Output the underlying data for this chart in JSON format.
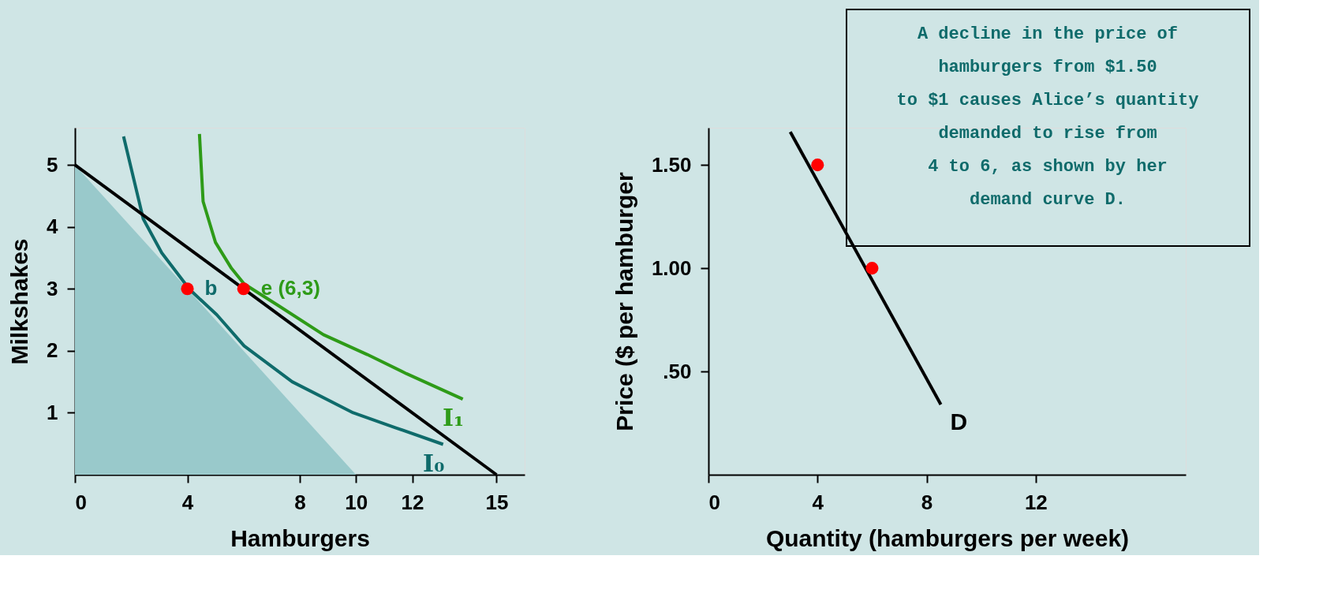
{
  "chart_data": [
    {
      "type": "line",
      "xlabel": "Hamburgers",
      "ylabel": "Milkshakes",
      "xlim": [
        0,
        16
      ],
      "ylim": [
        0,
        5.6
      ],
      "xticks": [
        0,
        4,
        8,
        10,
        12,
        15
      ],
      "yticks": [
        1,
        2,
        3,
        4,
        5
      ],
      "grid": false,
      "series": [
        {
          "type": "area",
          "color": "#99c9cb",
          "x": [
            0,
            10
          ],
          "values": [
            5,
            0
          ]
        },
        {
          "name": "I₀",
          "color": "#0f6b6b",
          "x": [
            1.73,
            2.43,
            3.09,
            4.08,
            5.05,
            6.02,
            7.73,
            9.9,
            11.4,
            13.1
          ],
          "values": [
            5.46,
            4.13,
            3.58,
            2.99,
            2.58,
            2.08,
            1.5,
            1.0,
            0.76,
            0.49
          ]
        },
        {
          "name": "I₁",
          "color": "#2e9b18",
          "x": [
            4.43,
            4.56,
            5.0,
            5.57,
            6.02,
            7.27,
            8.84,
            10.4,
            11.8,
            13.8
          ],
          "values": [
            5.5,
            4.41,
            3.75,
            3.33,
            3.08,
            2.72,
            2.26,
            1.94,
            1.63,
            1.22
          ]
        },
        {
          "color": "#000000",
          "x": [
            0,
            15
          ],
          "values": [
            5,
            0
          ]
        },
        {
          "type": "scatter",
          "marker": "circle",
          "color": "#ff0000",
          "x": [
            4,
            6
          ],
          "values": [
            3,
            3
          ]
        }
      ],
      "annotations": [
        {
          "text": "b",
          "x": 4,
          "y": 3
        },
        {
          "text": "e (6,3)",
          "x": 6,
          "y": 3
        }
      ]
    },
    {
      "type": "line",
      "xlabel": "Quantity (hamburgers per week)",
      "ylabel": "Price ($ per hamburger",
      "xlim": [
        0,
        17.5
      ],
      "ylim": [
        0,
        1.68
      ],
      "xticks": [
        0,
        4,
        8,
        12
      ],
      "yticks": [
        {
          "value": 0.5,
          "label": ".50"
        },
        {
          "value": 1.0,
          "label": "1.00"
        },
        {
          "value": 1.5,
          "label": "1.50"
        }
      ],
      "grid": false,
      "series": [
        {
          "name": "D",
          "color": "#000000",
          "x": [
            3.0,
            8.52
          ],
          "values": [
            1.66,
            0.34
          ]
        },
        {
          "type": "scatter",
          "marker": "circle",
          "color": "#ff0000",
          "x": [
            4,
            6
          ],
          "values": [
            1.5,
            1.0
          ]
        }
      ],
      "annotations": [
        "A decline in the price of\nhamburgers from $1.50\nto $1 causes Alice’s quantity\ndemanded to rise from\n4 to 6, as shown by her\ndemand curve D."
      ]
    }
  ]
}
